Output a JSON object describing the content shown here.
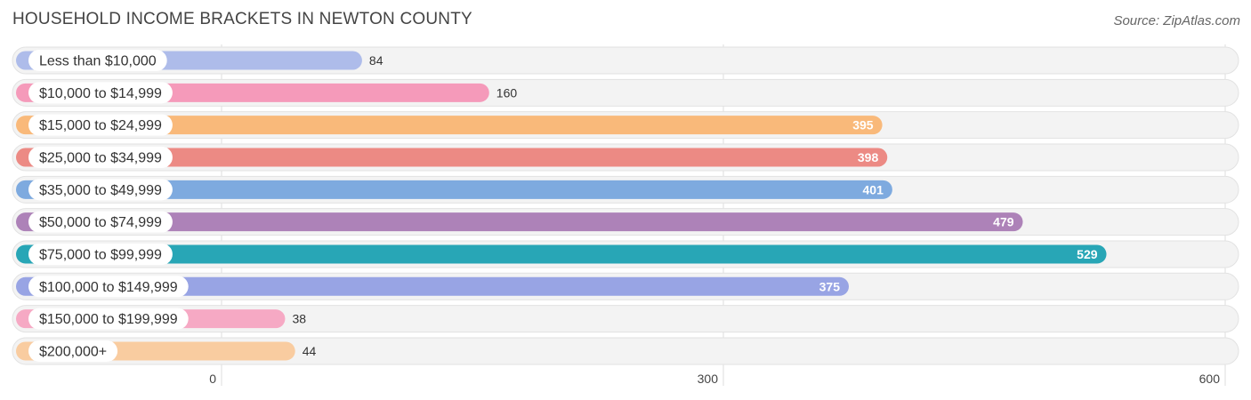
{
  "title": "HOUSEHOLD INCOME BRACKETS IN NEWTON COUNTY",
  "source": "Source: ZipAtlas.com",
  "chart_data": {
    "type": "bar",
    "orientation": "horizontal",
    "title": "HOUSEHOLD INCOME BRACKETS IN NEWTON COUNTY",
    "categories": [
      "Less than $10,000",
      "$10,000 to $14,999",
      "$15,000 to $24,999",
      "$25,000 to $34,999",
      "$35,000 to $49,999",
      "$50,000 to $74,999",
      "$75,000 to $99,999",
      "$100,000 to $149,999",
      "$150,000 to $199,999",
      "$200,000+"
    ],
    "values": [
      84,
      160,
      395,
      398,
      401,
      479,
      529,
      375,
      38,
      44
    ],
    "colors": [
      "#aebcea",
      "#f59aba",
      "#f9b97a",
      "#ec8a84",
      "#7eaadf",
      "#ad82b8",
      "#28a6b6",
      "#98a4e4",
      "#f6a9c4",
      "#f9cca0"
    ],
    "xlim": [
      0,
      600
    ],
    "xticks": [
      0,
      300,
      600
    ],
    "xlabel": "",
    "ylabel": "",
    "grid": true
  }
}
